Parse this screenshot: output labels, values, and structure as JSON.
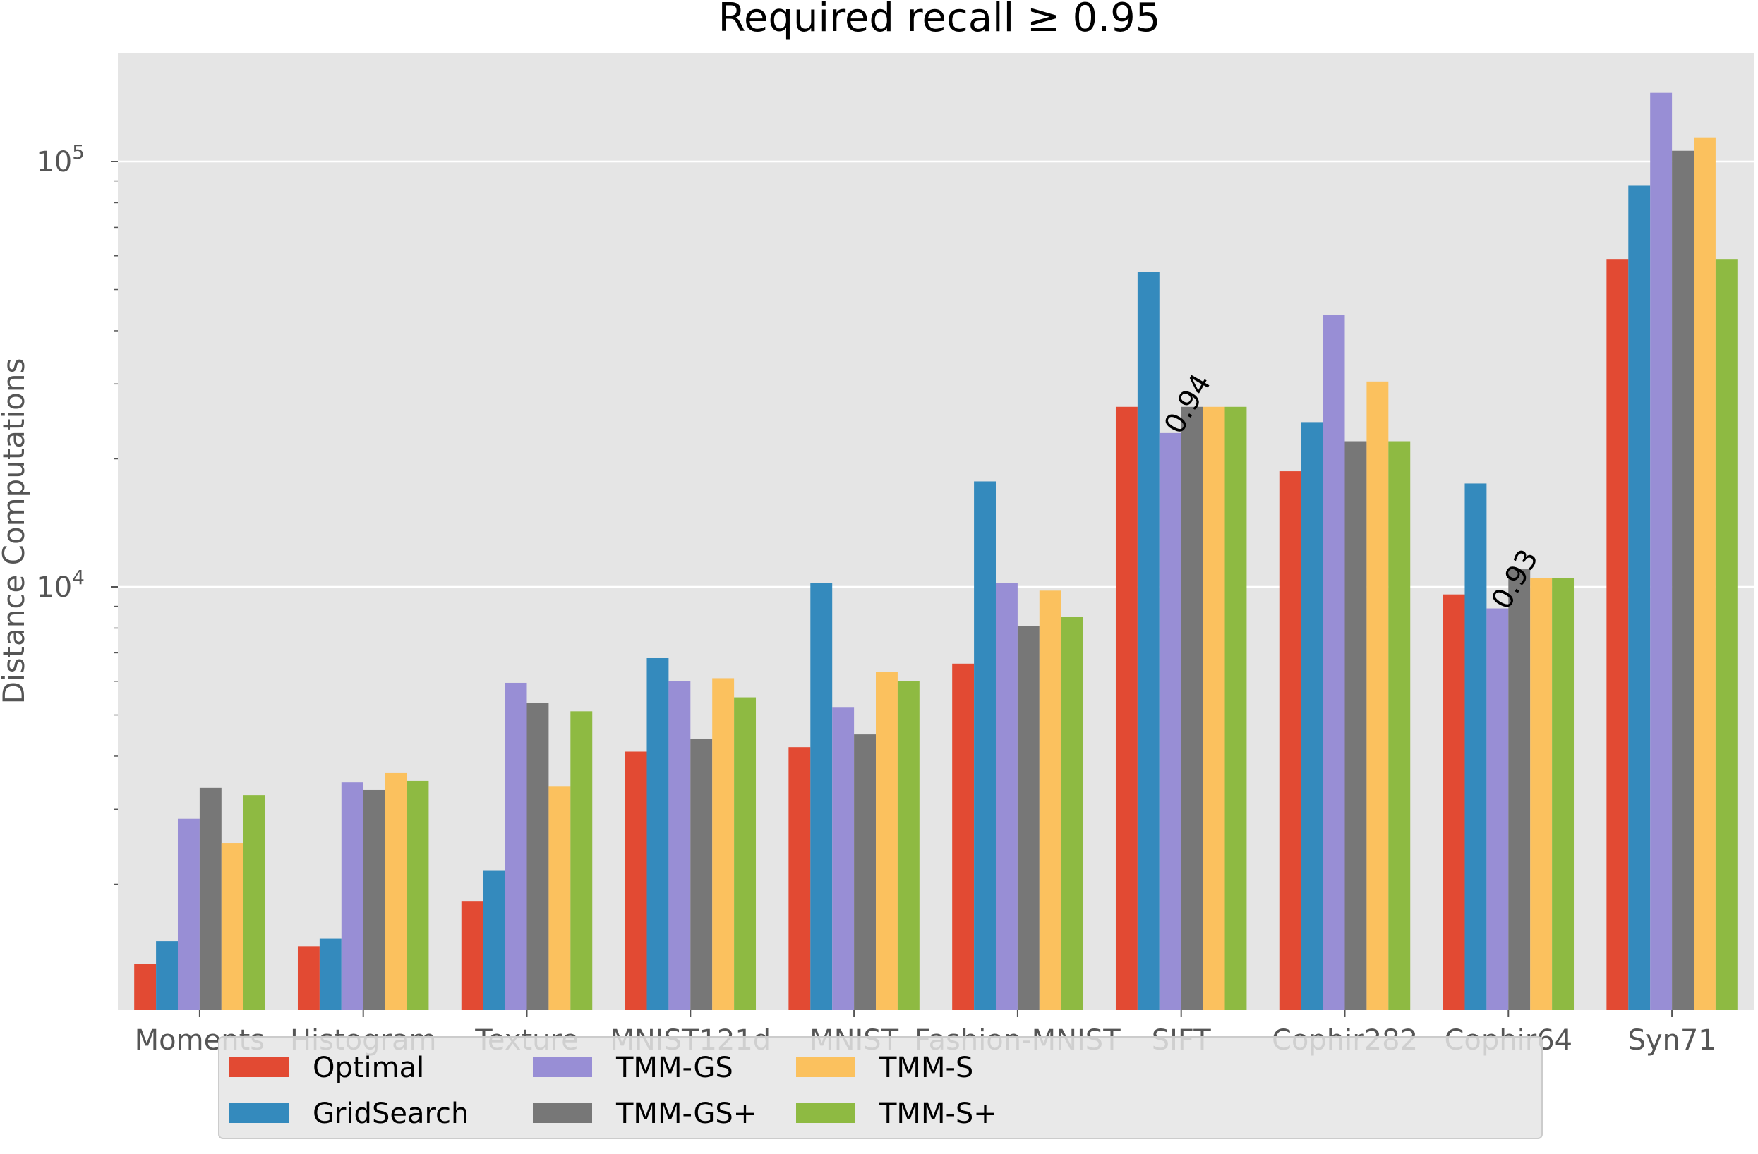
{
  "chart_data": {
    "type": "bar",
    "title": "Required recall ≥ 0.95",
    "xlabel": "",
    "ylabel": "Distance Computations",
    "yscale": "log",
    "ylim": [
      1000,
      150000
    ],
    "yticks": [
      {
        "value": 10000,
        "base": "10",
        "exp": "4"
      },
      {
        "value": 100000,
        "base": "10",
        "exp": "5"
      }
    ],
    "grid": true,
    "legend_position": "bottom-center",
    "categories": [
      "Moments",
      "Histogram",
      "Texture",
      "MNIST121d",
      "MNIST",
      "Fashion-MNIST",
      "SIFT",
      "Cophir282",
      "Cophir64",
      "Syn71"
    ],
    "series": [
      {
        "name": "Optimal",
        "color": "#E24A33",
        "values": [
          1300,
          1430,
          1820,
          4100,
          4200,
          6600,
          26500,
          18700,
          9600,
          59000
        ]
      },
      {
        "name": "GridSearch",
        "color": "#348ABD",
        "values": [
          1470,
          1490,
          2150,
          6800,
          10200,
          17700,
          55000,
          24400,
          17500,
          88000
        ]
      },
      {
        "name": "TMM-GS",
        "color": "#988ED5",
        "values": [
          2850,
          3470,
          5950,
          6000,
          5200,
          10200,
          23000,
          43500,
          8900,
          145000
        ]
      },
      {
        "name": "TMM-GS+",
        "color": "#777777",
        "values": [
          3370,
          3330,
          5340,
          4400,
          4500,
          8100,
          26500,
          22000,
          11000,
          106000
        ]
      },
      {
        "name": "TMM-S",
        "color": "#FBC15E",
        "values": [
          2500,
          3650,
          3390,
          6100,
          6300,
          9800,
          26500,
          30400,
          10500,
          114000
        ]
      },
      {
        "name": "TMM-S+",
        "color": "#8EBA42",
        "values": [
          3240,
          3500,
          5100,
          5500,
          6000,
          8500,
          26500,
          22000,
          10500,
          59000
        ]
      }
    ],
    "annotations": [
      {
        "text": "0.94",
        "category": "SIFT",
        "series": "TMM-GS"
      },
      {
        "text": "0.93",
        "category": "Cophir64",
        "series": "TMM-GS"
      }
    ]
  }
}
